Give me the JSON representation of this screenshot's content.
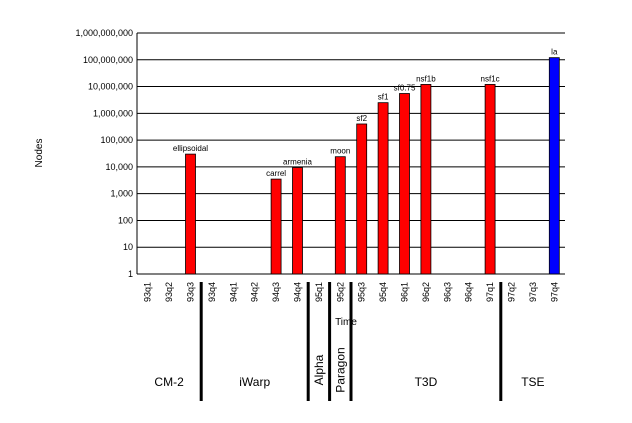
{
  "chart_data": {
    "type": "bar",
    "title": "",
    "xlabel": "Time",
    "ylabel": "Nodes",
    "y_scale": "log10",
    "ylim": [
      1,
      1000000000
    ],
    "grid": true,
    "legend": "none",
    "yticks": [
      "1",
      "10",
      "100",
      "1,000",
      "10,000",
      "100,000",
      "1,000,000",
      "10,000,000",
      "100,000,000",
      "1,000,000,000"
    ],
    "categories": [
      "93q1",
      "93q2",
      "93q3",
      "93q4",
      "94q1",
      "94q2",
      "94q3",
      "94q4",
      "95q1",
      "95q2",
      "95q3",
      "95q4",
      "96q1",
      "96q2",
      "96q3",
      "96q4",
      "97q1",
      "97q2",
      "97q3",
      "97q4"
    ],
    "values": [
      null,
      null,
      30000,
      null,
      null,
      null,
      3500,
      9500,
      null,
      24000,
      400000,
      2500000,
      5500000,
      12000000,
      null,
      null,
      12000000,
      null,
      null,
      120000000
    ],
    "bar_labels": [
      "",
      "",
      "ellipsoidal",
      "",
      "",
      "",
      "carrel",
      "armenia",
      "",
      "moon",
      "sf2",
      "sf1",
      "sf0.75",
      "nsf1b",
      "",
      "",
      "nsf1c",
      "",
      "",
      "la"
    ],
    "bar_colors": [
      "#ff0000",
      "#ff0000",
      "#ff0000",
      "#ff0000",
      "#ff0000",
      "#ff0000",
      "#ff0000",
      "#ff0000",
      "#ff0000",
      "#ff0000",
      "#ff0000",
      "#ff0000",
      "#ff0000",
      "#ff0000",
      "#ff0000",
      "#ff0000",
      "#ff0000",
      "#ff0000",
      "#ff0000",
      "#0000ff"
    ],
    "machines": [
      {
        "name": "CM-2",
        "from": 0,
        "to": 2,
        "vertical": false
      },
      {
        "name": "iWarp",
        "from": 3,
        "to": 7,
        "vertical": false
      },
      {
        "name": "Alpha",
        "from": 8,
        "to": 8,
        "vertical": true
      },
      {
        "name": "Paragon",
        "from": 9,
        "to": 9,
        "vertical": true
      },
      {
        "name": "T3D",
        "from": 10,
        "to": 16,
        "vertical": false
      },
      {
        "name": "TSE",
        "from": 17,
        "to": 19,
        "vertical": false
      }
    ]
  },
  "colors": {
    "default_bar": "#ff0000",
    "highlight_bar": "#0000ff",
    "grid": "#000000"
  }
}
